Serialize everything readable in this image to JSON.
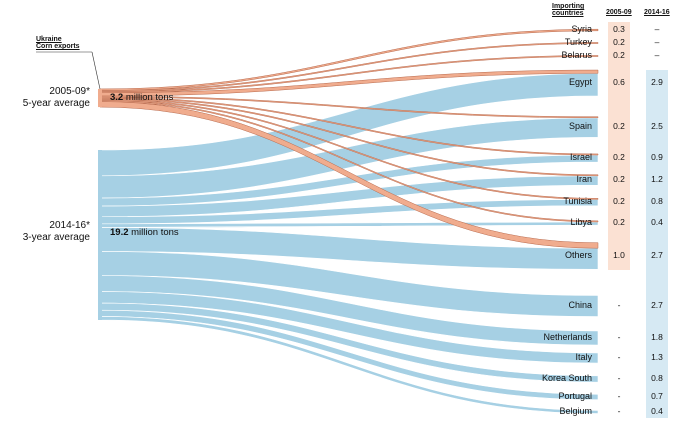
{
  "chart_data": {
    "type": "sankey",
    "source_header": [
      "Ukraine",
      "Corn exports"
    ],
    "target_header": [
      "Importing",
      "countries"
    ],
    "column_headers": [
      "2005-09",
      "2014-16"
    ],
    "sources": [
      {
        "period": "2005-09*",
        "label": "5-year average",
        "total_value": "3.2",
        "total_unit": "million tons",
        "color": "#f0ac8e"
      },
      {
        "period": "2014-16*",
        "label": "3-year average",
        "total_value": "19.2",
        "total_unit": "million tons",
        "color": "#a6d0e4"
      }
    ],
    "countries": [
      {
        "name": "Syria",
        "v2005_09": "0.3",
        "v2014_16": "–"
      },
      {
        "name": "Turkey",
        "v2005_09": "0.2",
        "v2014_16": "–"
      },
      {
        "name": "Belarus",
        "v2005_09": "0.2",
        "v2014_16": "–"
      },
      {
        "name": "Egypt",
        "v2005_09": "0.6",
        "v2014_16": "2.9"
      },
      {
        "name": "Spain",
        "v2005_09": "0.2",
        "v2014_16": "2.5"
      },
      {
        "name": "Israel",
        "v2005_09": "0.2",
        "v2014_16": "0.9"
      },
      {
        "name": "Iran",
        "v2005_09": "0.2",
        "v2014_16": "1.2"
      },
      {
        "name": "Tunisia",
        "v2005_09": "0.2",
        "v2014_16": "0.8"
      },
      {
        "name": "Libya",
        "v2005_09": "0.2",
        "v2014_16": "0.4"
      },
      {
        "name": "Others",
        "v2005_09": "1.0",
        "v2014_16": "2.7"
      },
      {
        "name": "China",
        "v2005_09": "-",
        "v2014_16": "2.7"
      },
      {
        "name": "Netherlands",
        "v2005_09": "-",
        "v2014_16": "1.8"
      },
      {
        "name": "Italy",
        "v2005_09": "-",
        "v2014_16": "1.3"
      },
      {
        "name": "Korea South",
        "v2005_09": "-",
        "v2014_16": "0.8"
      },
      {
        "name": "Portugal",
        "v2005_09": "-",
        "v2014_16": "0.7"
      },
      {
        "name": "Belgium",
        "v2005_09": "-",
        "v2014_16": "0.4"
      }
    ]
  }
}
